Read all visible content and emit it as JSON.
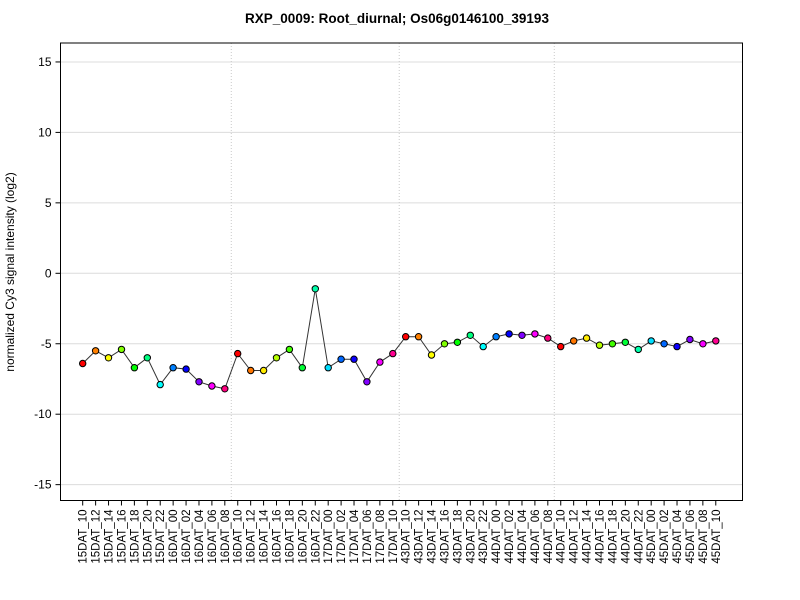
{
  "chart_data": {
    "type": "line",
    "title": "RXP_0009: Root_diurnal; Os06g0146100_39193",
    "xlabel": "",
    "ylabel": "normalized Cy3 signal intensity (log2)",
    "ylim": [
      -16.3,
      16.3
    ],
    "ytick_values": [
      -15,
      -10,
      -5,
      0,
      5,
      10,
      15
    ],
    "ytick_labels": [
      "-15",
      "-10",
      "-5",
      "0",
      "5",
      "10",
      "15"
    ],
    "grid": {
      "horizontal": "on",
      "h_color": "#dcdcdc",
      "v_color": "#c9c9c9"
    },
    "legend": "none",
    "separator_positions": [
      11.5,
      24.5,
      36.5
    ],
    "line_color": "#333333",
    "marker_edge_color": "#000000",
    "categories": [
      "15DAT_10",
      "15DAT_12",
      "15DAT_14",
      "15DAT_16",
      "15DAT_18",
      "15DAT_20",
      "15DAT_22",
      "16DAT_00",
      "16DAT_02",
      "16DAT_04",
      "16DAT_06",
      "16DAT_08",
      "16DAT_10",
      "16DAT_12",
      "16DAT_14",
      "16DAT_16",
      "16DAT_18",
      "16DAT_20",
      "16DAT_22",
      "17DAT_00",
      "17DAT_02",
      "17DAT_04",
      "17DAT_06",
      "17DAT_08",
      "17DAT_10",
      "43DAT_10",
      "43DAT_12",
      "43DAT_14",
      "43DAT_16",
      "43DAT_18",
      "43DAT_20",
      "43DAT_22",
      "44DAT_00",
      "44DAT_02",
      "44DAT_04",
      "44DAT_06",
      "44DAT_08",
      "44DAT_10",
      "44DAT_12",
      "44DAT_14",
      "44DAT_16",
      "44DAT_18",
      "44DAT_20",
      "44DAT_22",
      "45DAT_00",
      "45DAT_02",
      "45DAT_04",
      "45DAT_06",
      "45DAT_08",
      "45DAT_10"
    ],
    "values": [
      -6.4,
      -5.5,
      -6.0,
      -5.4,
      -6.7,
      -6.0,
      -7.9,
      -6.7,
      -6.8,
      -7.7,
      -8.0,
      -8.2,
      -5.7,
      -6.9,
      -6.9,
      -6.0,
      -5.4,
      -6.7,
      -1.1,
      -6.7,
      -6.1,
      -6.1,
      -7.7,
      -6.3,
      -5.7,
      -4.5,
      -4.5,
      -5.8,
      -5.0,
      -4.9,
      -4.4,
      -5.2,
      -4.5,
      -4.3,
      -4.4,
      -4.3,
      -4.6,
      -5.2,
      -4.8,
      -4.6,
      -5.1,
      -5.0,
      -4.9,
      -5.4,
      -4.8,
      -5.0,
      -5.2,
      -4.7,
      -5.0,
      -4.8
    ],
    "point_colors": [
      "#FF0000",
      "#FF8000",
      "#FFFF00",
      "#80FF00",
      "#00FF00",
      "#00FF80",
      "#00FFFF",
      "#0080FF",
      "#0000FF",
      "#8000FF",
      "#FF00FF",
      "#FF0080",
      "#FF0000",
      "#FF7600",
      "#FFEB00",
      "#B6FF00",
      "#40FF00",
      "#00FF35",
      "#00FFAB",
      "#00DEFF",
      "#0068FF",
      "#0D00FF",
      "#8300FF",
      "#F800FF",
      "#FF0091",
      "#FF0000",
      "#FF8000",
      "#FFFF00",
      "#80FF00",
      "#00FF00",
      "#00FF80",
      "#00FFFF",
      "#0080FF",
      "#0000FF",
      "#8000FF",
      "#FF00FF",
      "#FF0080",
      "#FF0000",
      "#FF7600",
      "#FFEB00",
      "#B6FF00",
      "#40FF00",
      "#00FF35",
      "#00FFAB",
      "#00DEFF",
      "#0068FF",
      "#0D00FF",
      "#8300FF",
      "#F800FF",
      "#FF0091"
    ]
  }
}
